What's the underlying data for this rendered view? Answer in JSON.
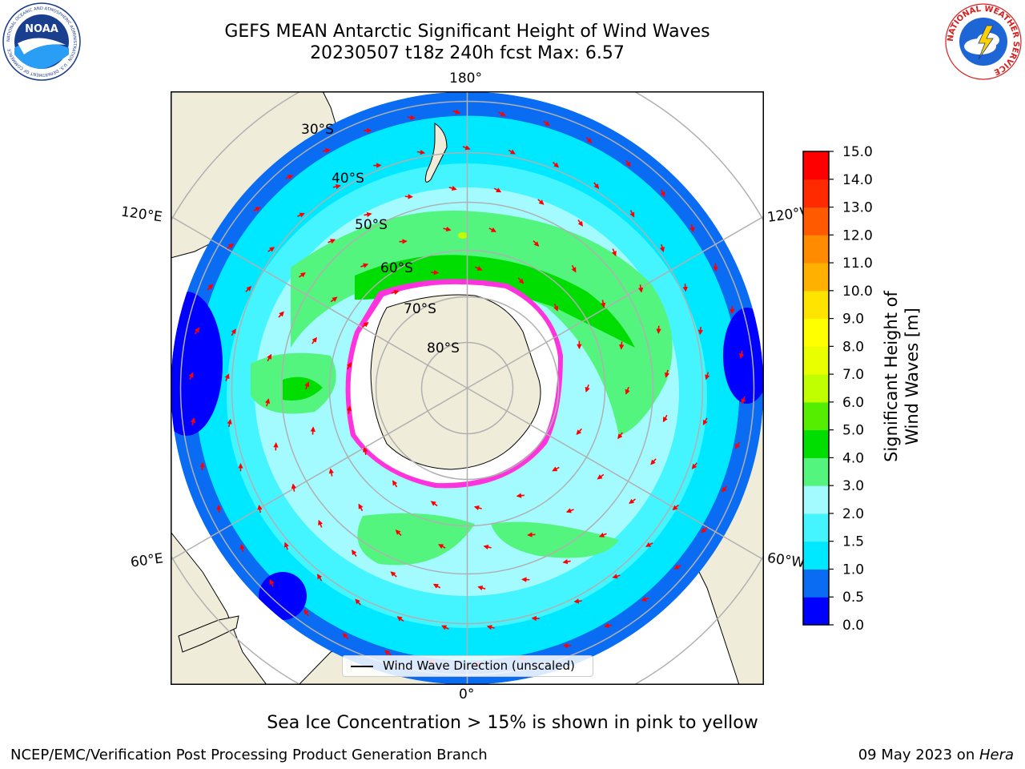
{
  "header": {
    "title_line1": "GEFS MEAN Antarctic Significant Height of Wind Waves",
    "title_line2": "20230507 t18z 240h fcst   Max: 6.57"
  },
  "logos": {
    "left": {
      "text": "NOAA",
      "ring_text": "NATIONAL OCEANIC AND ATMOSPHERIC ADMINISTRATION · U.S. DEPARTMENT OF COMMERCE"
    },
    "right": {
      "ring_text": "NATIONAL WEATHER SERVICE"
    }
  },
  "map": {
    "lon_labels": {
      "top": "180°",
      "bottom": "0°",
      "upper_left": "120°E",
      "upper_right": "120°W",
      "lower_left": "60°E",
      "lower_right": "60°W"
    },
    "lat_labels": [
      "30°S",
      "40°S",
      "50°S",
      "60°S",
      "70°S",
      "80°S"
    ],
    "legend_label": "Wind Wave Direction (unscaled)",
    "colors": {
      "land": "#efedda",
      "background": "#ffffff",
      "grid": "#b0b0b0",
      "arrow": "#ff0000",
      "ice_edge": "#ff33dd"
    }
  },
  "colorbar": {
    "label": "Significant Height of Wind Waves [m]",
    "tick_labels": [
      "0.0",
      "0.5",
      "1.0",
      "1.5",
      "2.0",
      "3.0",
      "4.0",
      "5.0",
      "6.0",
      "7.0",
      "8.0",
      "9.0",
      "10.0",
      "11.0",
      "12.0",
      "13.0",
      "14.0",
      "15.0"
    ],
    "colors": [
      "#0000ff",
      "#0a6cf2",
      "#00e8ff",
      "#44f5ff",
      "#a4fbff",
      "#54f57e",
      "#00dd00",
      "#55ee00",
      "#c0ff00",
      "#e9ff00",
      "#ffff00",
      "#ffe400",
      "#ffb000",
      "#ff8c00",
      "#ff5a00",
      "#ff2a00",
      "#ff0000"
    ]
  },
  "footer": {
    "note": "Sea Ice Concentration > 15% is shown in pink to yellow",
    "left": "NCEP/EMC/Verification Post Processing Product Generation Branch",
    "right_prefix": "09 May 2023 on ",
    "right_machine": "Hera"
  }
}
